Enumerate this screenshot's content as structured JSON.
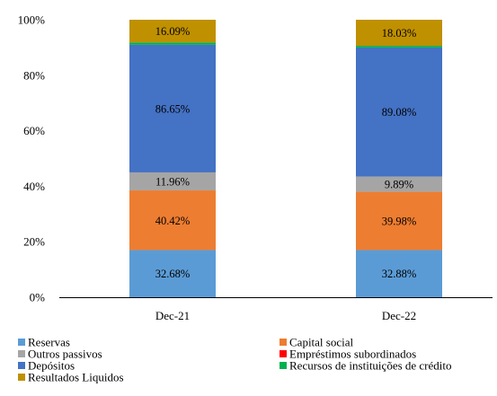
{
  "chart_data": {
    "type": "bar",
    "stacked": true,
    "categories": [
      "Dec-21",
      "Dec-22"
    ],
    "series": [
      {
        "name": "Reservas",
        "color": "#5B9BD5",
        "values": [
          17.0,
          17.0
        ],
        "labels": [
          "32.68%",
          "32.88%"
        ]
      },
      {
        "name": "Capital social",
        "color": "#ED7D31",
        "values": [
          21.5,
          21.0
        ],
        "labels": [
          "40.42%",
          "39.98%"
        ]
      },
      {
        "name": "Outros passivos",
        "color": "#A5A5A5",
        "values": [
          6.5,
          5.5
        ],
        "labels": [
          "11.96%",
          "9.89%"
        ]
      },
      {
        "name": "Empréstimos subordinados",
        "color": "#FF0000",
        "values": [
          0.0,
          0.0
        ],
        "labels": [
          "",
          ""
        ]
      },
      {
        "name": "Depósitos",
        "color": "#4472C4",
        "values": [
          46.0,
          46.5
        ],
        "labels": [
          "86.65%",
          "89.08%"
        ]
      },
      {
        "name": "Recursos de instituições de crédito",
        "color": "#00B050",
        "values": [
          0.8,
          0.6
        ],
        "labels": [
          "",
          ""
        ]
      },
      {
        "name": "Resultados Liquidos",
        "color": "#BF9000",
        "values": [
          8.2,
          9.4
        ],
        "labels": [
          "16.09%",
          "18.03%"
        ]
      }
    ],
    "y_ticks": [
      "0%",
      "20%",
      "40%",
      "60%",
      "80%",
      "100%"
    ],
    "ylim": [
      0,
      100
    ],
    "grid": false,
    "legend_position": "bottom",
    "title": "",
    "xlabel": "",
    "ylabel": ""
  }
}
